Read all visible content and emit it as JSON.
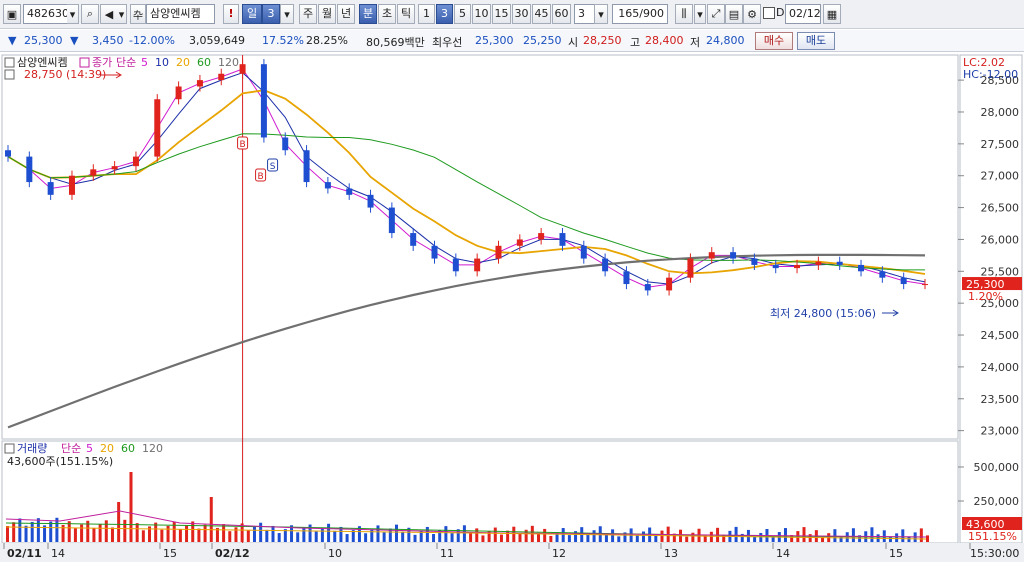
{
  "toolbar": {
    "stock_code": "482630",
    "stock_name": "삼양엔씨켐",
    "alert_label": "!",
    "period_daily": "일",
    "period_value": "3",
    "period_weekly": "주",
    "period_monthly": "월",
    "period_yearly": "년",
    "period_minute": "분",
    "period_second": "초",
    "period_tick": "틱",
    "intervals": [
      "1",
      "3",
      "5",
      "10",
      "15",
      "30",
      "45",
      "60"
    ],
    "interval_active": "3",
    "count_select": "3",
    "count_display": "165",
    "count_total": "/900",
    "date_check_label": "D",
    "date_value": "02/12"
  },
  "quote": {
    "price": "25,300",
    "change": "3,450",
    "change_pct": "-12.00%",
    "volume": "3,059,649",
    "turnover_pct": "17.52%",
    "ratio_pct": "28.25%",
    "amount": "80,569백만",
    "best_bid_label": "최우선",
    "ask": "25,300",
    "bid": "25,250",
    "open_label": "시",
    "open": "28,250",
    "high_label": "고",
    "high": "28,400",
    "low_label": "저",
    "low": "24,800",
    "buy_label": "매수",
    "sell_label": "매도"
  },
  "chart": {
    "legend_name": "삼양엔씨켐",
    "legend_price": "종가",
    "legend_simple": "단순",
    "ma_periods": [
      "5",
      "10",
      "20",
      "60",
      "120"
    ],
    "ma_colors": [
      "#d01cd0",
      "#1c2fa8",
      "#e8a400",
      "#1e9a1e",
      "#707070"
    ],
    "high_marker": "28,750 (14:39)",
    "low_marker": "최저 24,800 (15:06)",
    "lc_label": "LC:2.02",
    "hc_label": "HC:-12.00",
    "price_axis": [
      "28,500",
      "28,000",
      "27,500",
      "27,000",
      "26,500",
      "26,000",
      "25,500",
      "25,000",
      "24,500",
      "24,000",
      "23,500",
      "23,000"
    ],
    "current_price_tag": "25,300",
    "current_pct_tag": "1.20%",
    "signal_b": "B",
    "signal_s": "S"
  },
  "volume_panel": {
    "legend_name": "거래량",
    "legend_simple": "단순",
    "ma_periods": [
      "5",
      "20",
      "60",
      "120"
    ],
    "ma_colors": [
      "#d01cd0",
      "#e8a400",
      "#1e9a1e",
      "#707070"
    ],
    "volume_text": "43,600주(151.15%)",
    "axis": [
      "500,000",
      "250,000"
    ],
    "volume_tag": "43,600",
    "volume_pct_tag": "151.15%"
  },
  "time_axis": [
    "02/11",
    "14",
    "15",
    "02/12",
    "10",
    "11",
    "12",
    "13",
    "14",
    "15",
    "15:30:00"
  ],
  "chart_data": {
    "type": "line",
    "title": "삼양엔씨켐",
    "ylim": [
      22900,
      28800
    ],
    "series": [
      {
        "name": "종가",
        "values": [
          27300,
          26900,
          26700,
          27000,
          27100,
          27150,
          27300,
          28200,
          28400,
          28500,
          28600,
          28750,
          27600,
          27400,
          26900,
          26800,
          26700,
          26500,
          26100,
          25900,
          25700,
          25500,
          25700,
          25900,
          26000,
          26100,
          25900,
          25700,
          25500,
          25300,
          25200,
          25400,
          25700,
          25800,
          25700,
          25600,
          25550,
          25600,
          25650,
          25600,
          25500,
          25400,
          25300,
          25300
        ]
      }
    ]
  }
}
